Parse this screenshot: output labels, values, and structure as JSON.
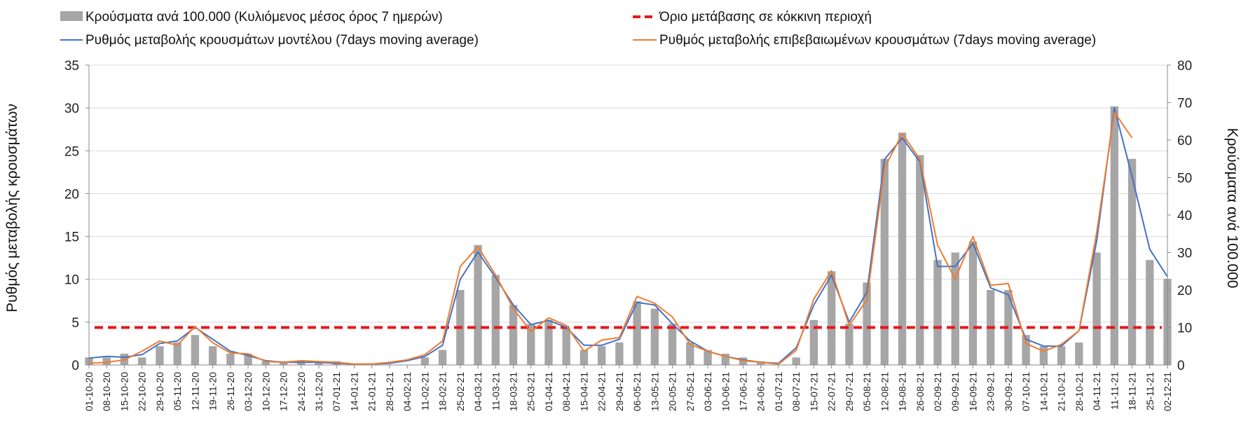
{
  "chart_data": {
    "type": "combo",
    "categories": [
      "01-10-20",
      "08-10-20",
      "15-10-20",
      "22-10-20",
      "29-10-20",
      "05-11-20",
      "12-11-20",
      "19-11-20",
      "26-11-20",
      "03-12-20",
      "10-12-20",
      "17-12-20",
      "24-12-20",
      "31-12-20",
      "07-01-21",
      "14-01-21",
      "21-01-21",
      "28-01-21",
      "04-02-21",
      "11-02-21",
      "18-02-21",
      "25-02-21",
      "04-03-21",
      "11-03-21",
      "18-03-21",
      "25-03-21",
      "01-04-21",
      "08-04-21",
      "15-04-21",
      "22-04-21",
      "29-04-21",
      "06-05-21",
      "13-05-21",
      "20-05-21",
      "27-05-21",
      "03-06-21",
      "10-06-21",
      "17-06-21",
      "24-06-21",
      "01-07-21",
      "08-07-21",
      "15-07-21",
      "22-07-21",
      "29-07-21",
      "05-08-21",
      "12-08-21",
      "19-08-21",
      "26-08-21",
      "02-09-21",
      "09-09-21",
      "16-09-21",
      "23-09-21",
      "30-09-21",
      "07-10-21",
      "14-10-21",
      "21-10-21",
      "28-10-21",
      "04-11-21",
      "11-11-21",
      "18-11-21",
      "25-11-21",
      "02-12-21"
    ],
    "left_axis": {
      "title": "Ρυθμός μεταβολής κρουσμάτων",
      "min": 0,
      "max": 35,
      "ticks": [
        0,
        5,
        10,
        15,
        20,
        25,
        30,
        35
      ]
    },
    "right_axis": {
      "title": "Κρούσματα ανά 100.000",
      "min": 0,
      "max": 80,
      "ticks": [
        0,
        10,
        20,
        30,
        40,
        50,
        60,
        70,
        80
      ]
    },
    "threshold": {
      "name": "Όριο μετάβασης σε κόκκινη περιοχή",
      "value_left": 4.37,
      "color": "#e8151b"
    },
    "series": [
      {
        "name": "Κρούσματα ανά 100.000 (Κυλιόμενος μέσος όρος 7 ημερών)",
        "kind": "bar",
        "axis": "right",
        "color": "#a6a6a6",
        "values": [
          2,
          2,
          3,
          2,
          5,
          6,
          8,
          5,
          3,
          3,
          1,
          1,
          1,
          1,
          1,
          0,
          0,
          0,
          0,
          2,
          4,
          20,
          32,
          24,
          16,
          11,
          12,
          10,
          4,
          5,
          6,
          17,
          15,
          11,
          6,
          4,
          3,
          2,
          1,
          0,
          2,
          12,
          25,
          11,
          22,
          55,
          62,
          56,
          28,
          30,
          33,
          20,
          20,
          8,
          5,
          5,
          6,
          30,
          69,
          55,
          28,
          23
        ]
      },
      {
        "name": "Ρυθμός μεταβολής κρουσμάτων μοντέλου (7days moving average)",
        "kind": "line",
        "axis": "left",
        "color": "#4472c4",
        "values": [
          0.8,
          1.0,
          0.9,
          1.2,
          2.5,
          2.8,
          4.4,
          3.0,
          1.6,
          1.1,
          0.5,
          0.3,
          0.3,
          0.3,
          0.2,
          0.1,
          0.1,
          0.2,
          0.5,
          1.0,
          2.3,
          10.0,
          13.2,
          10.2,
          7.0,
          4.7,
          5.2,
          4.4,
          2.3,
          2.3,
          3.0,
          7.3,
          7.0,
          4.8,
          2.8,
          1.6,
          1.0,
          0.6,
          0.3,
          0.2,
          2.0,
          7.0,
          10.5,
          5.0,
          8.5,
          24.0,
          26.5,
          23.7,
          11.5,
          11.5,
          14.2,
          9.0,
          8.2,
          3.0,
          2.2,
          2.2,
          4.0,
          14.5,
          30.0,
          22.0,
          13.5,
          10.3
        ]
      },
      {
        "name": "Ρυθμός μεταβολής επιβεβαιωμένων κρουσμάτων (7days moving average)",
        "kind": "line",
        "axis": "left",
        "color": "#ed7d31",
        "values": [
          0.2,
          0.3,
          0.6,
          1.6,
          2.8,
          2.3,
          4.5,
          2.6,
          1.4,
          1.3,
          0.4,
          0.3,
          0.5,
          0.4,
          0.3,
          0.1,
          0.1,
          0.3,
          0.6,
          1.2,
          2.8,
          11.5,
          13.8,
          10.5,
          6.6,
          3.9,
          5.5,
          4.6,
          1.6,
          2.9,
          3.2,
          8.0,
          7.2,
          5.6,
          2.4,
          1.6,
          1.0,
          0.5,
          0.3,
          0.1,
          1.7,
          7.7,
          11.0,
          4.6,
          7.6,
          23.0,
          27.0,
          24.0,
          14.0,
          10.0,
          15.0,
          9.3,
          9.5,
          2.5,
          1.6,
          2.4,
          4.0,
          15.5,
          29.5,
          26.5,
          null,
          null
        ]
      }
    ]
  }
}
